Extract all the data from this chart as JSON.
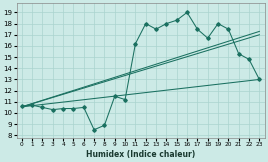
{
  "xlabel": "Humidex (Indice chaleur)",
  "bg_color": "#cceae6",
  "grid_color": "#aad4ce",
  "line_color": "#1a7060",
  "xlim": [
    -0.5,
    23.5
  ],
  "ylim": [
    7.8,
    19.8
  ],
  "xticks": [
    0,
    1,
    2,
    3,
    4,
    5,
    6,
    7,
    8,
    9,
    10,
    11,
    12,
    13,
    14,
    15,
    16,
    17,
    18,
    19,
    20,
    21,
    22,
    23
  ],
  "yticks": [
    8,
    9,
    10,
    11,
    12,
    13,
    14,
    15,
    16,
    17,
    18,
    19
  ],
  "line1_x": [
    0,
    1,
    2,
    3,
    4,
    5,
    6,
    7,
    8,
    9,
    10,
    11,
    12,
    13,
    14,
    15,
    16,
    17,
    18,
    19,
    20,
    21,
    22,
    23
  ],
  "line1_y": [
    10.6,
    10.7,
    10.5,
    10.3,
    10.4,
    10.4,
    10.5,
    8.5,
    8.9,
    11.5,
    11.2,
    16.2,
    18.0,
    17.5,
    18.0,
    18.3,
    19.0,
    17.5,
    16.7,
    18.0,
    17.5,
    15.3,
    14.8,
    13.0
  ],
  "reg_line1_x": [
    0,
    23
  ],
  "reg_line1_y": [
    10.55,
    13.0
  ],
  "reg_line2_x": [
    0,
    23
  ],
  "reg_line2_y": [
    10.55,
    17.3
  ],
  "reg_line3_x": [
    0,
    23
  ],
  "reg_line3_y": [
    10.55,
    17.0
  ]
}
